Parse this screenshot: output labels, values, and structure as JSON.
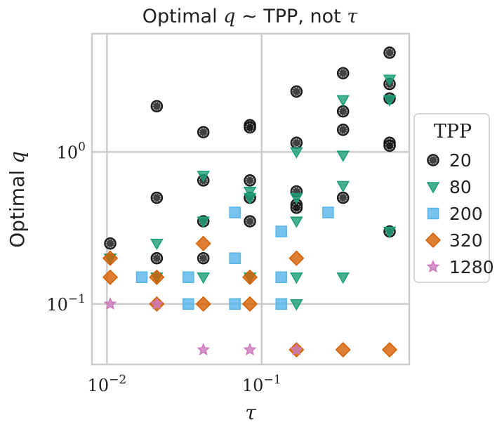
{
  "chart_data": {
    "type": "scatter",
    "title": "Optimal q ~ TPP, not τ",
    "title_parts": {
      "prefix": "Optimal ",
      "q": "q",
      "tilde": " ∼ ",
      "tpp": "TPP, not ",
      "tau": "τ"
    },
    "xlabel": "τ",
    "ylabel": "Optimal q",
    "ylabel_prefix": "Optimal ",
    "ylabel_var": "q",
    "x_scale": "log",
    "y_scale": "log",
    "xlim": [
      0.008,
      0.9
    ],
    "ylim": [
      0.04,
      6.0
    ],
    "grid": true,
    "x_ticks": [
      {
        "value": 0.01,
        "base": "10",
        "exp": "−2"
      },
      {
        "value": 0.1,
        "base": "10",
        "exp": "−1"
      }
    ],
    "y_ticks": [
      {
        "value": 1.0,
        "base": "10",
        "exp": "0"
      },
      {
        "value": 0.1,
        "base": "10",
        "exp": "−1"
      }
    ],
    "legend": {
      "title": "TPP",
      "position": "right, outside"
    },
    "series": [
      {
        "name": "20",
        "marker": "circle",
        "color": "#111111",
        "points": [
          {
            "x": 0.0105,
            "y": 0.25
          },
          {
            "x": 0.021,
            "y": 2.0
          },
          {
            "x": 0.021,
            "y": 0.5
          },
          {
            "x": 0.021,
            "y": 0.2
          },
          {
            "x": 0.042,
            "y": 1.35
          },
          {
            "x": 0.042,
            "y": 0.65
          },
          {
            "x": 0.042,
            "y": 0.35
          },
          {
            "x": 0.042,
            "y": 0.2
          },
          {
            "x": 0.084,
            "y": 1.5
          },
          {
            "x": 0.084,
            "y": 1.45
          },
          {
            "x": 0.084,
            "y": 0.65
          },
          {
            "x": 0.084,
            "y": 0.5
          },
          {
            "x": 0.084,
            "y": 0.35
          },
          {
            "x": 0.168,
            "y": 2.5
          },
          {
            "x": 0.168,
            "y": 1.15
          },
          {
            "x": 0.168,
            "y": 0.55
          },
          {
            "x": 0.168,
            "y": 0.45
          },
          {
            "x": 0.168,
            "y": 0.43
          },
          {
            "x": 0.336,
            "y": 3.3
          },
          {
            "x": 0.336,
            "y": 1.85
          },
          {
            "x": 0.336,
            "y": 1.4
          },
          {
            "x": 0.336,
            "y": 0.5
          },
          {
            "x": 0.672,
            "y": 4.5
          },
          {
            "x": 0.672,
            "y": 2.8
          },
          {
            "x": 0.672,
            "y": 2.25
          },
          {
            "x": 0.672,
            "y": 1.15
          },
          {
            "x": 0.672,
            "y": 1.1
          },
          {
            "x": 0.672,
            "y": 0.3
          }
        ]
      },
      {
        "name": "80",
        "marker": "triangle-down",
        "color": "#1a9e77",
        "points": [
          {
            "x": 0.0105,
            "y": 0.2
          },
          {
            "x": 0.021,
            "y": 0.25
          },
          {
            "x": 0.021,
            "y": 0.15
          },
          {
            "x": 0.042,
            "y": 0.7
          },
          {
            "x": 0.042,
            "y": 0.35
          },
          {
            "x": 0.042,
            "y": 0.15
          },
          {
            "x": 0.084,
            "y": 0.55
          },
          {
            "x": 0.084,
            "y": 0.5
          },
          {
            "x": 0.084,
            "y": 0.15
          },
          {
            "x": 0.168,
            "y": 1.0
          },
          {
            "x": 0.168,
            "y": 0.5
          },
          {
            "x": 0.168,
            "y": 0.35
          },
          {
            "x": 0.168,
            "y": 0.15
          },
          {
            "x": 0.168,
            "y": 0.1
          },
          {
            "x": 0.336,
            "y": 2.2
          },
          {
            "x": 0.336,
            "y": 0.95
          },
          {
            "x": 0.336,
            "y": 0.6
          },
          {
            "x": 0.336,
            "y": 0.15
          },
          {
            "x": 0.672,
            "y": 3.0
          },
          {
            "x": 0.672,
            "y": 2.2
          },
          {
            "x": 0.672,
            "y": 0.3
          }
        ]
      },
      {
        "name": "200",
        "marker": "square",
        "color": "#56b4e9",
        "points": [
          {
            "x": 0.0168,
            "y": 0.15
          },
          {
            "x": 0.0336,
            "y": 0.15
          },
          {
            "x": 0.0336,
            "y": 0.1
          },
          {
            "x": 0.0672,
            "y": 0.4
          },
          {
            "x": 0.0672,
            "y": 0.2
          },
          {
            "x": 0.0672,
            "y": 0.1
          },
          {
            "x": 0.134,
            "y": 0.3
          },
          {
            "x": 0.134,
            "y": 0.15
          },
          {
            "x": 0.134,
            "y": 0.1
          },
          {
            "x": 0.269,
            "y": 0.4
          }
        ]
      },
      {
        "name": "320",
        "marker": "diamond",
        "color": "#d55e00",
        "points": [
          {
            "x": 0.0105,
            "y": 0.2
          },
          {
            "x": 0.0105,
            "y": 0.15
          },
          {
            "x": 0.021,
            "y": 0.15
          },
          {
            "x": 0.021,
            "y": 0.1
          },
          {
            "x": 0.042,
            "y": 0.25
          },
          {
            "x": 0.042,
            "y": 0.1
          },
          {
            "x": 0.084,
            "y": 0.15
          },
          {
            "x": 0.084,
            "y": 0.1
          },
          {
            "x": 0.168,
            "y": 0.2
          },
          {
            "x": 0.168,
            "y": 0.05
          },
          {
            "x": 0.336,
            "y": 0.05
          },
          {
            "x": 0.672,
            "y": 0.05
          }
        ]
      },
      {
        "name": "1280",
        "marker": "star",
        "color": "#cc78bc",
        "points": [
          {
            "x": 0.0105,
            "y": 0.1
          },
          {
            "x": 0.021,
            "y": 0.1
          },
          {
            "x": 0.042,
            "y": 0.05
          },
          {
            "x": 0.084,
            "y": 0.05
          },
          {
            "x": 0.168,
            "y": 0.05
          }
        ]
      }
    ]
  }
}
